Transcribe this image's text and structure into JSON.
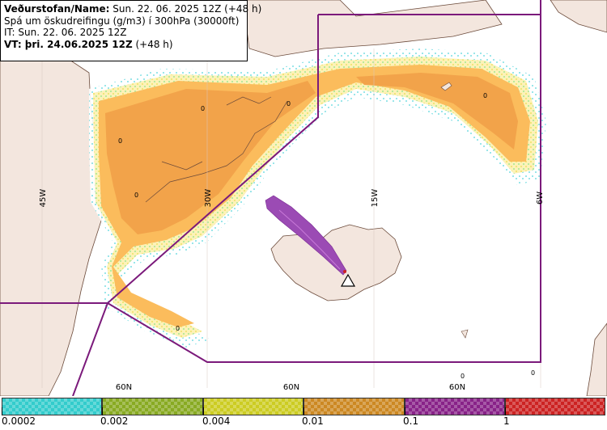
{
  "info": {
    "title_label": "Veðurstofan/Name:",
    "title_value": "Sun. 22. 06. 2025 12Z (+48 h)",
    "description": "Spá um öskudreifingu (g/m3) í 300hPa (30000ft)",
    "issue_time": "IT: Sun. 22. 06. 2025 12Z",
    "valid_label": "VT: þri. 24.06.2025 12Z",
    "valid_suffix": "(+48 h)"
  },
  "map_labels": {
    "lon_45w": "45W",
    "lon_30w": "30W",
    "lon_15w": "15W",
    "lon_6w": "6W",
    "lat_60n_a": "60N",
    "lat_60n_b": "60N",
    "lat_60n_c": "60N",
    "zero_markers": [
      "0",
      "0",
      "0",
      "0",
      "0",
      "0",
      "0",
      "0"
    ]
  },
  "legend": {
    "swatches": [
      {
        "name": "0.0002-0.002",
        "color": "#33cccc"
      },
      {
        "name": "0.002-0.004",
        "color": "#88aa22"
      },
      {
        "name": "0.004-0.01",
        "color": "#cccc22"
      },
      {
        "name": "0.01-0.1",
        "color": "#cc8822"
      },
      {
        "name": "0.1-1",
        "color": "#882288"
      },
      {
        "name": ">1",
        "color": "#cc2222"
      }
    ],
    "ticks": [
      "0.0002",
      "0.002",
      "0.004",
      "0.01",
      "0.1",
      "1"
    ]
  },
  "colors": {
    "ocean": "#ffffff",
    "land": "#f3e6de",
    "ash_low": "#fde6a0",
    "ash_mid": "#fbbc5c",
    "ash_high": "#f2a34a",
    "ash_plume": "#9b4bb4",
    "boundary": "#7b1a7b"
  }
}
